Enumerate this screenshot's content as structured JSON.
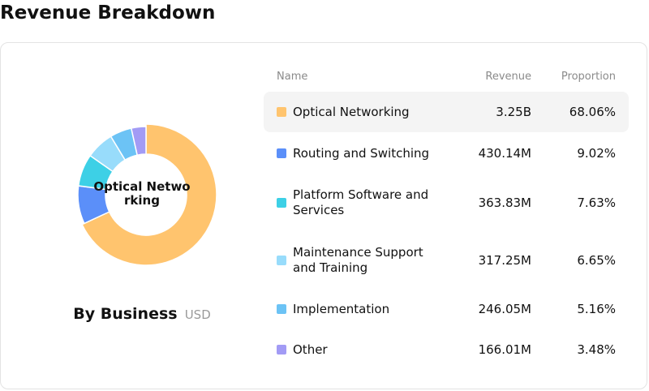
{
  "page": {
    "title": "Revenue Breakdown"
  },
  "summary": {
    "title": "By Business",
    "unit": "USD",
    "center_label": "Optical Networking"
  },
  "table": {
    "headers": {
      "name": "Name",
      "revenue": "Revenue",
      "proportion": "Proportion"
    }
  },
  "chart_data": {
    "type": "pie",
    "title": "By Business",
    "unit": "USD",
    "categories": [
      "Optical Networking",
      "Routing and Switching",
      "Platform Software and Services",
      "Maintenance Support and Training",
      "Implementation",
      "Other"
    ],
    "revenue_labels": [
      "3.25B",
      "430.14M",
      "363.83M",
      "317.25M",
      "246.05M",
      "166.01M"
    ],
    "proportion_labels": [
      "68.06%",
      "9.02%",
      "7.63%",
      "6.65%",
      "5.16%",
      "3.48%"
    ],
    "values": [
      68.06,
      9.02,
      7.63,
      6.65,
      5.16,
      3.48
    ],
    "colors": [
      "#FFC46E",
      "#5B8FF9",
      "#3DD0E6",
      "#98DCFB",
      "#6CC3F5",
      "#A29BF5"
    ],
    "highlighted_index": 0,
    "legend": "table-right"
  }
}
